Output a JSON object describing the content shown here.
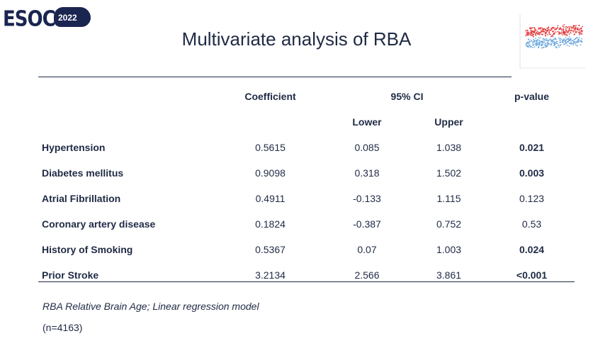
{
  "logo": {
    "word": "ESOC",
    "year": "2022"
  },
  "title": "Multivariate analysis of RBA",
  "table": {
    "headers": {
      "coefficient": "Coefficient",
      "ci": "95% CI",
      "pvalue": "p-value"
    },
    "subheaders": {
      "lower": "Lower",
      "upper": "Upper"
    },
    "rows": [
      {
        "label": "Hypertension",
        "coef": "0.5615",
        "lower": "0.085",
        "upper": "1.038",
        "p": "0.021"
      },
      {
        "label": "Diabetes mellitus",
        "coef": "0.9098",
        "lower": "0.318",
        "upper": "1.502",
        "p": "0.003"
      },
      {
        "label": "Atrial Fibrillation",
        "coef": "0.4911",
        "lower": "-0.133",
        "upper": "1.115",
        "p": "0.123"
      },
      {
        "label": "Coronary artery disease",
        "coef": "0.1824",
        "lower": "-0.387",
        "upper": "0.752",
        "p": "0.53"
      },
      {
        "label": "History of Smoking",
        "coef": "0.5367",
        "lower": "0.07",
        "upper": "1.003",
        "p": "0.024"
      },
      {
        "label": "Prior Stroke",
        "coef": "3.2134",
        "lower": "2.566",
        "upper": "3.861",
        "p": "<0.001"
      }
    ]
  },
  "footnote": "RBA Relative Brain Age; Linear regression model",
  "sample": "(n=4163)",
  "colors": {
    "text": "#1f2a44",
    "logo": "#1a2550",
    "red_points": "#e23b3b",
    "blue_points": "#6aa6dc"
  }
}
